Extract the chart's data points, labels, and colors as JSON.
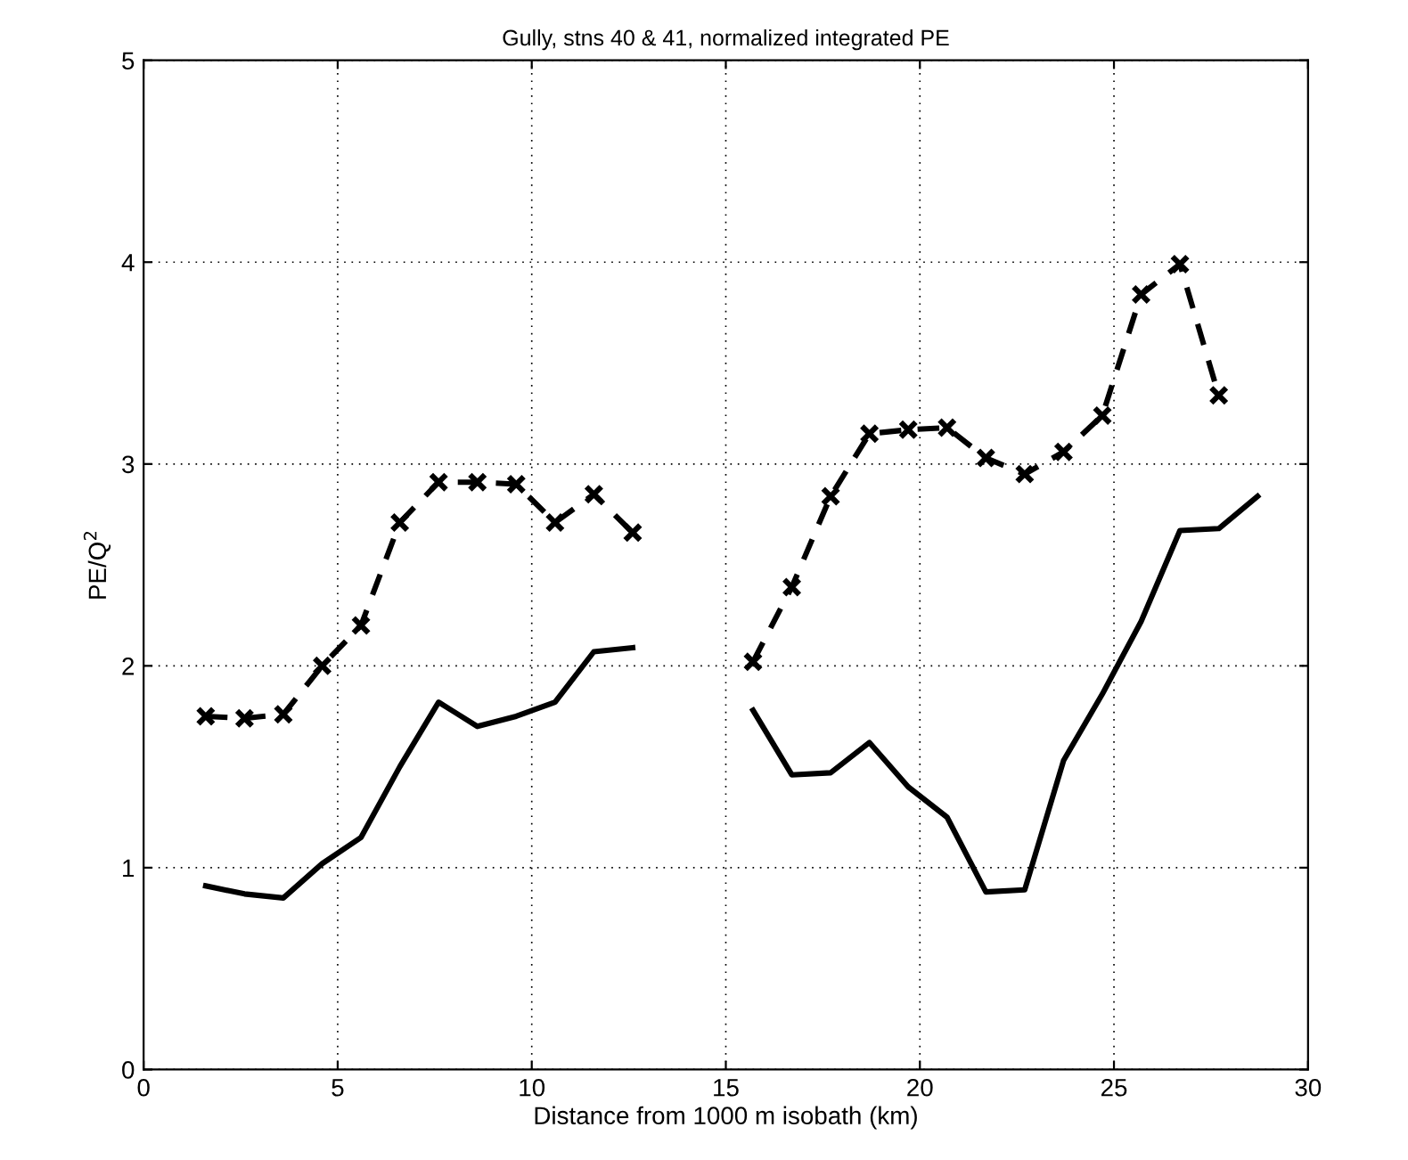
{
  "chart_data": {
    "type": "line",
    "title": "Gully, stns 40 & 41, normalized integrated PE",
    "xlabel": "Distance from 1000 m isobath (km)",
    "ylabel": "PE/Q$^{2}$",
    "xlim": [
      0,
      30
    ],
    "xticks": [
      0,
      5,
      10,
      15,
      20,
      25,
      30
    ],
    "ylim": [
      0,
      5
    ],
    "yticks": [
      0,
      1,
      2,
      3,
      4,
      5
    ],
    "grid": true,
    "series": [
      {
        "color": "#000000",
        "marker": "cross",
        "line_style": "dashed",
        "x": [
          1.6,
          2.6,
          3.6,
          4.6,
          5.6,
          6.6,
          7.6,
          8.6,
          9.6,
          10.6,
          11.6,
          12.6,
          14.1,
          15.7,
          16.7,
          17.7,
          18.7,
          19.7,
          20.7,
          21.7,
          22.7,
          23.7,
          24.7,
          25.7,
          26.7,
          27.7
        ],
        "values": [
          1.75,
          1.74,
          1.76,
          2.0,
          2.2,
          2.71,
          2.91,
          2.91,
          2.9,
          2.71,
          2.85,
          2.66,
          null,
          2.02,
          2.39,
          2.84,
          3.15,
          3.17,
          3.18,
          3.03,
          2.95,
          3.06,
          3.24,
          3.84,
          3.99,
          3.34
        ]
      },
      {
        "color": "#000000",
        "marker": "none",
        "line_style": "solid",
        "x": [
          1.6,
          2.6,
          3.6,
          4.6,
          5.6,
          6.6,
          7.6,
          8.6,
          9.6,
          10.6,
          11.6,
          12.6,
          14.1,
          15.7,
          16.7,
          17.7,
          18.7,
          19.7,
          20.7,
          21.7,
          22.7,
          23.7,
          24.7,
          25.7,
          26.7,
          27.7,
          28.7
        ],
        "values": [
          0.91,
          0.87,
          0.85,
          1.02,
          1.15,
          1.5,
          1.82,
          1.7,
          1.75,
          1.82,
          2.07,
          2.09,
          null,
          1.78,
          1.46,
          1.47,
          1.62,
          1.4,
          1.25,
          0.88,
          0.89,
          1.53,
          1.86,
          2.22,
          2.67,
          2.68,
          2.84
        ]
      }
    ]
  }
}
